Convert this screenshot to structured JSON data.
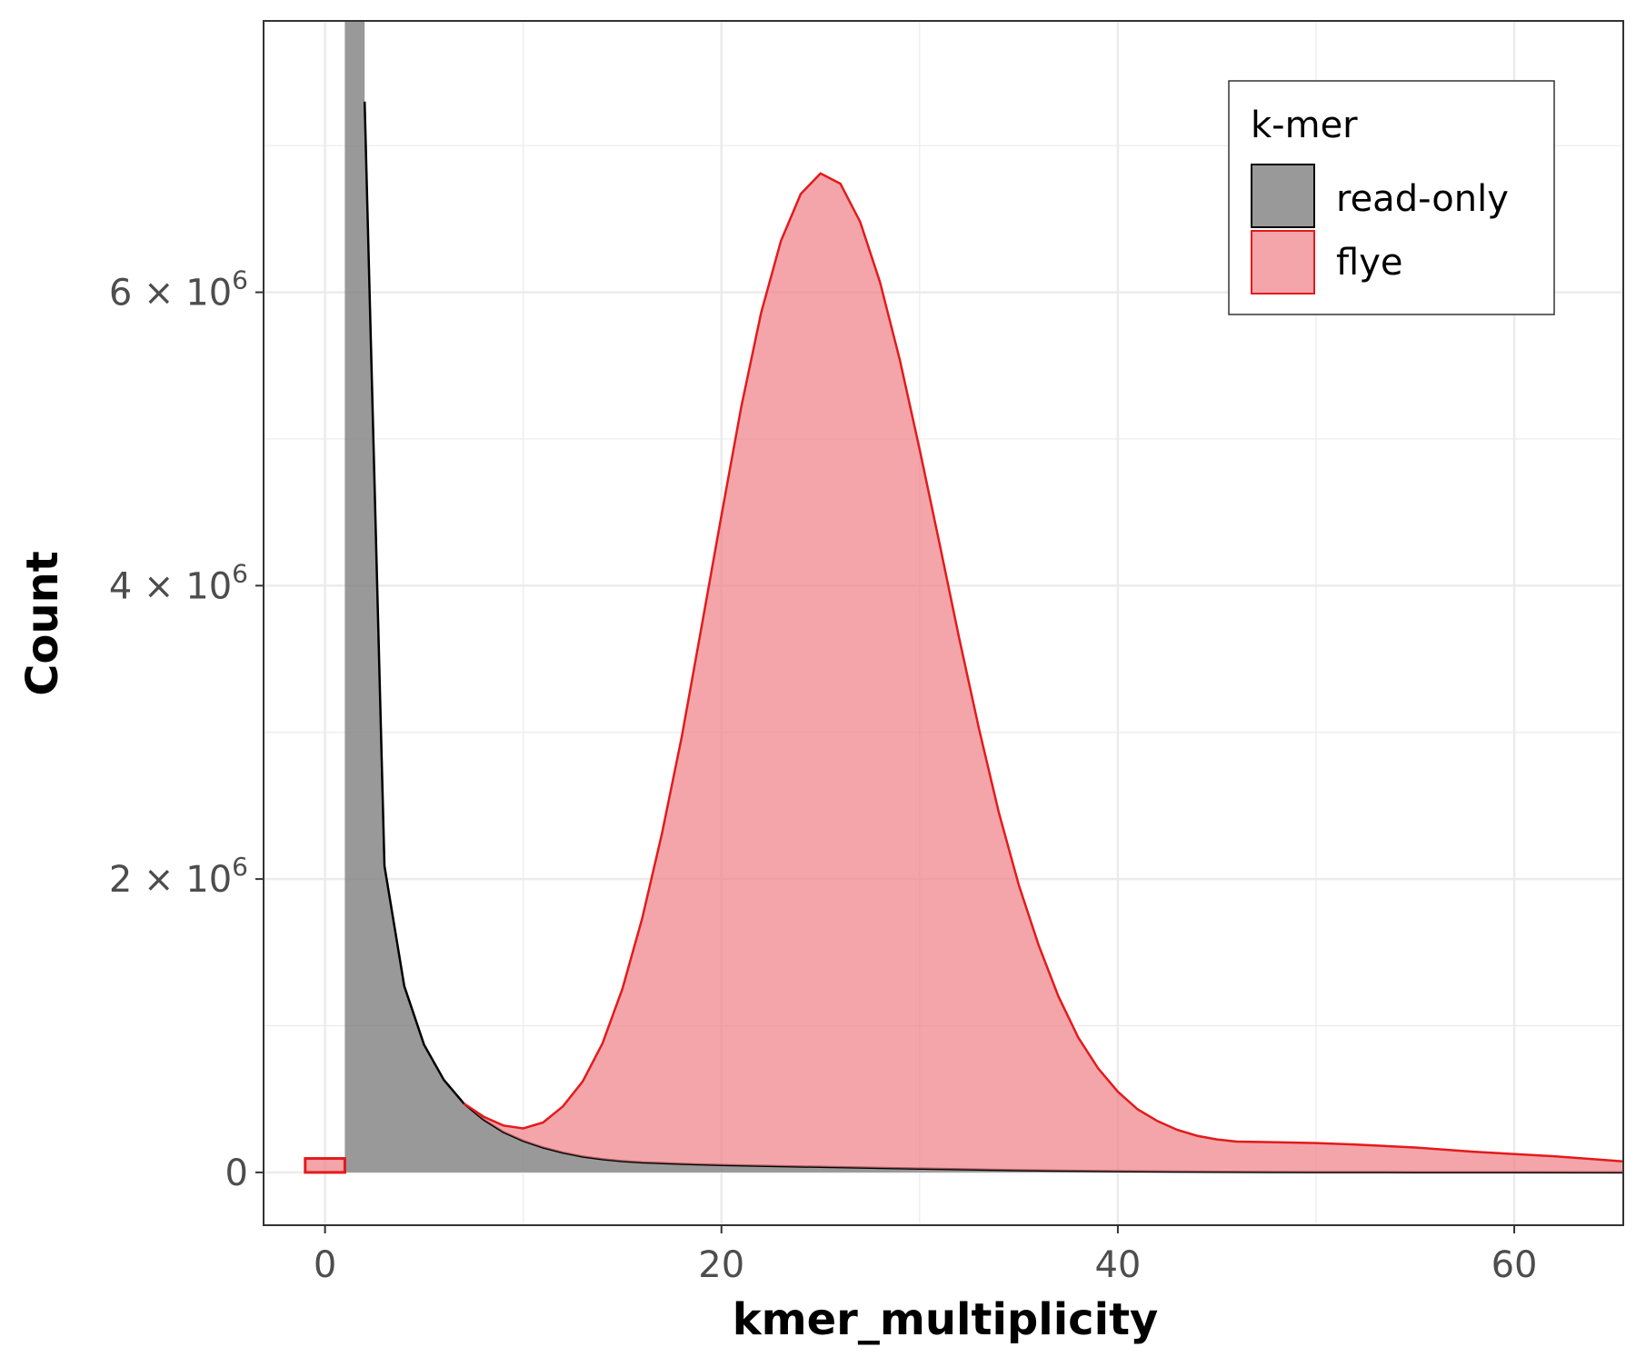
{
  "chart_data": {
    "type": "area",
    "title": "",
    "xlabel": "kmer_multiplicity",
    "ylabel": "Count",
    "xlim": [
      -3.1,
      65.5
    ],
    "ylim": [
      -360000,
      7850000
    ],
    "x_ticks": [
      {
        "value": 0,
        "label": "0"
      },
      {
        "value": 20,
        "label": "20"
      },
      {
        "value": 40,
        "label": "40"
      },
      {
        "value": 60,
        "label": "60"
      }
    ],
    "y_ticks": [
      {
        "value": 0,
        "mantissa": "0",
        "times": "",
        "base": "",
        "exponent": ""
      },
      {
        "value": 2000000,
        "mantissa": "2",
        "times": "×",
        "base": "10",
        "exponent": "6"
      },
      {
        "value": 4000000,
        "mantissa": "4",
        "times": "×",
        "base": "10",
        "exponent": "6"
      },
      {
        "value": 6000000,
        "mantissa": "6",
        "times": "×",
        "base": "10",
        "exponent": "6"
      }
    ],
    "y_minor_breaks": [
      1000000,
      3000000,
      5000000,
      7000000
    ],
    "x_minor_breaks": [
      10,
      30,
      50
    ],
    "grid": true,
    "legend": {
      "title": "k-mer",
      "position": "top-right",
      "entries": [
        {
          "label": "read-only",
          "fill": "#7f7f7f",
          "stroke": "#000000"
        },
        {
          "label": "flye",
          "fill": "#ef7f85",
          "stroke": "#e31a1c"
        }
      ]
    },
    "series": [
      {
        "name": "read-only",
        "fill": "#7f7f7f",
        "stroke": "#000000",
        "points": [
          [
            1,
            0
          ],
          [
            1,
            9000000
          ],
          [
            2,
            9000000
          ],
          [
            2,
            7300000
          ],
          [
            3,
            2090000
          ],
          [
            4,
            1270000
          ],
          [
            5,
            870000
          ],
          [
            6,
            630000
          ],
          [
            7,
            470000
          ],
          [
            8,
            360000
          ],
          [
            9,
            275000
          ],
          [
            10,
            215000
          ],
          [
            11,
            170000
          ],
          [
            12,
            135000
          ],
          [
            13,
            108000
          ],
          [
            14,
            90000
          ],
          [
            15,
            77000
          ],
          [
            16,
            68000
          ],
          [
            18,
            58000
          ],
          [
            20,
            50000
          ],
          [
            22,
            45000
          ],
          [
            25,
            38000
          ],
          [
            30,
            26000
          ],
          [
            35,
            15000
          ],
          [
            40,
            8000
          ],
          [
            45,
            4000
          ],
          [
            50,
            2000
          ],
          [
            55,
            1000
          ],
          [
            60,
            500
          ],
          [
            65.5,
            0
          ]
        ]
      },
      {
        "name": "flye",
        "fill": "#ef7f85",
        "stroke": "#e31a1c",
        "bar": {
          "x": 0,
          "width": 2,
          "value": 95000
        },
        "points": [
          [
            7,
            470000
          ],
          [
            8,
            380000
          ],
          [
            9,
            320000
          ],
          [
            10,
            300000
          ],
          [
            11,
            340000
          ],
          [
            12,
            450000
          ],
          [
            13,
            620000
          ],
          [
            14,
            880000
          ],
          [
            15,
            1250000
          ],
          [
            16,
            1730000
          ],
          [
            17,
            2310000
          ],
          [
            18,
            2970000
          ],
          [
            19,
            3720000
          ],
          [
            20,
            4480000
          ],
          [
            21,
            5220000
          ],
          [
            22,
            5860000
          ],
          [
            23,
            6350000
          ],
          [
            24,
            6670000
          ],
          [
            25,
            6810000
          ],
          [
            26,
            6740000
          ],
          [
            27,
            6480000
          ],
          [
            28,
            6070000
          ],
          [
            29,
            5540000
          ],
          [
            30,
            4930000
          ],
          [
            31,
            4290000
          ],
          [
            32,
            3640000
          ],
          [
            33,
            3020000
          ],
          [
            34,
            2450000
          ],
          [
            35,
            1960000
          ],
          [
            36,
            1550000
          ],
          [
            37,
            1200000
          ],
          [
            38,
            920000
          ],
          [
            39,
            710000
          ],
          [
            40,
            550000
          ],
          [
            41,
            430000
          ],
          [
            42,
            350000
          ],
          [
            43,
            290000
          ],
          [
            44,
            250000
          ],
          [
            45,
            225000
          ],
          [
            46,
            210000
          ],
          [
            48,
            205000
          ],
          [
            50,
            200000
          ],
          [
            52,
            190000
          ],
          [
            55,
            170000
          ],
          [
            58,
            140000
          ],
          [
            62,
            110000
          ],
          [
            65.5,
            75000
          ]
        ]
      }
    ]
  }
}
